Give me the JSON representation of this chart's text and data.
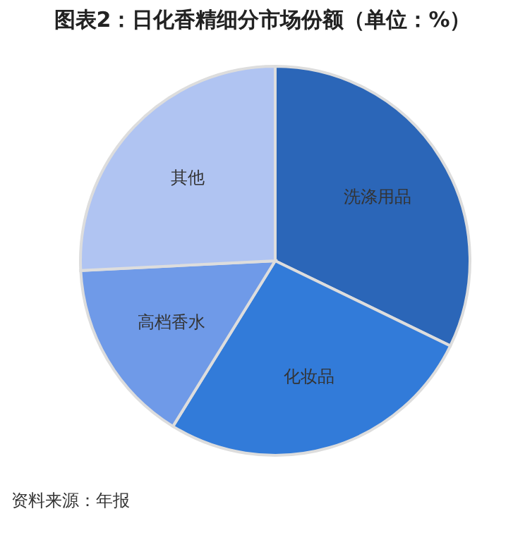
{
  "chart_data": {
    "type": "pie",
    "title": "图表2：日化香精细分市场份额（单位：%）",
    "categories": [
      "洗涤用品",
      "化妆品",
      "高档香水",
      "其他"
    ],
    "values": [
      32.2,
      26.6,
      15.4,
      25.8
    ],
    "colors": [
      "#2b66b8",
      "#327bd9",
      "#6f9ae8",
      "#b0c4f2"
    ],
    "annotations": [
      "资料来源：年报"
    ],
    "legend": false
  }
}
